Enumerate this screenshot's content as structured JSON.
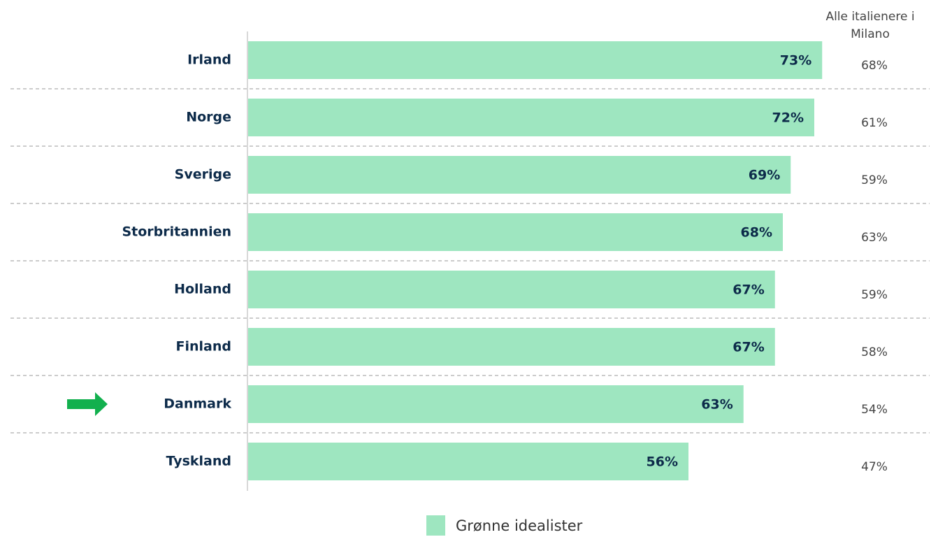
{
  "chart_data": {
    "type": "bar",
    "orientation": "horizontal",
    "categories": [
      "Irland",
      "Norge",
      "Sverige",
      "Storbritannien",
      "Holland",
      "Finland",
      "Danmark",
      "Tyskland"
    ],
    "series": [
      {
        "name": "Grønne idealister",
        "color": "#9ee6c0",
        "values": [
          73,
          72,
          69,
          68,
          67,
          67,
          63,
          56
        ],
        "value_labels": [
          "73%",
          "72%",
          "69%",
          "68%",
          "67%",
          "67%",
          "63%",
          "56%"
        ]
      },
      {
        "name": "Alle italienere i Milano",
        "values": [
          68,
          61,
          59,
          63,
          59,
          58,
          54,
          47
        ],
        "value_labels": [
          "68%",
          "61%",
          "59%",
          "63%",
          "59%",
          "58%",
          "54%",
          "47%"
        ]
      }
    ],
    "xlim": [
      0,
      100
    ]
  }
}
